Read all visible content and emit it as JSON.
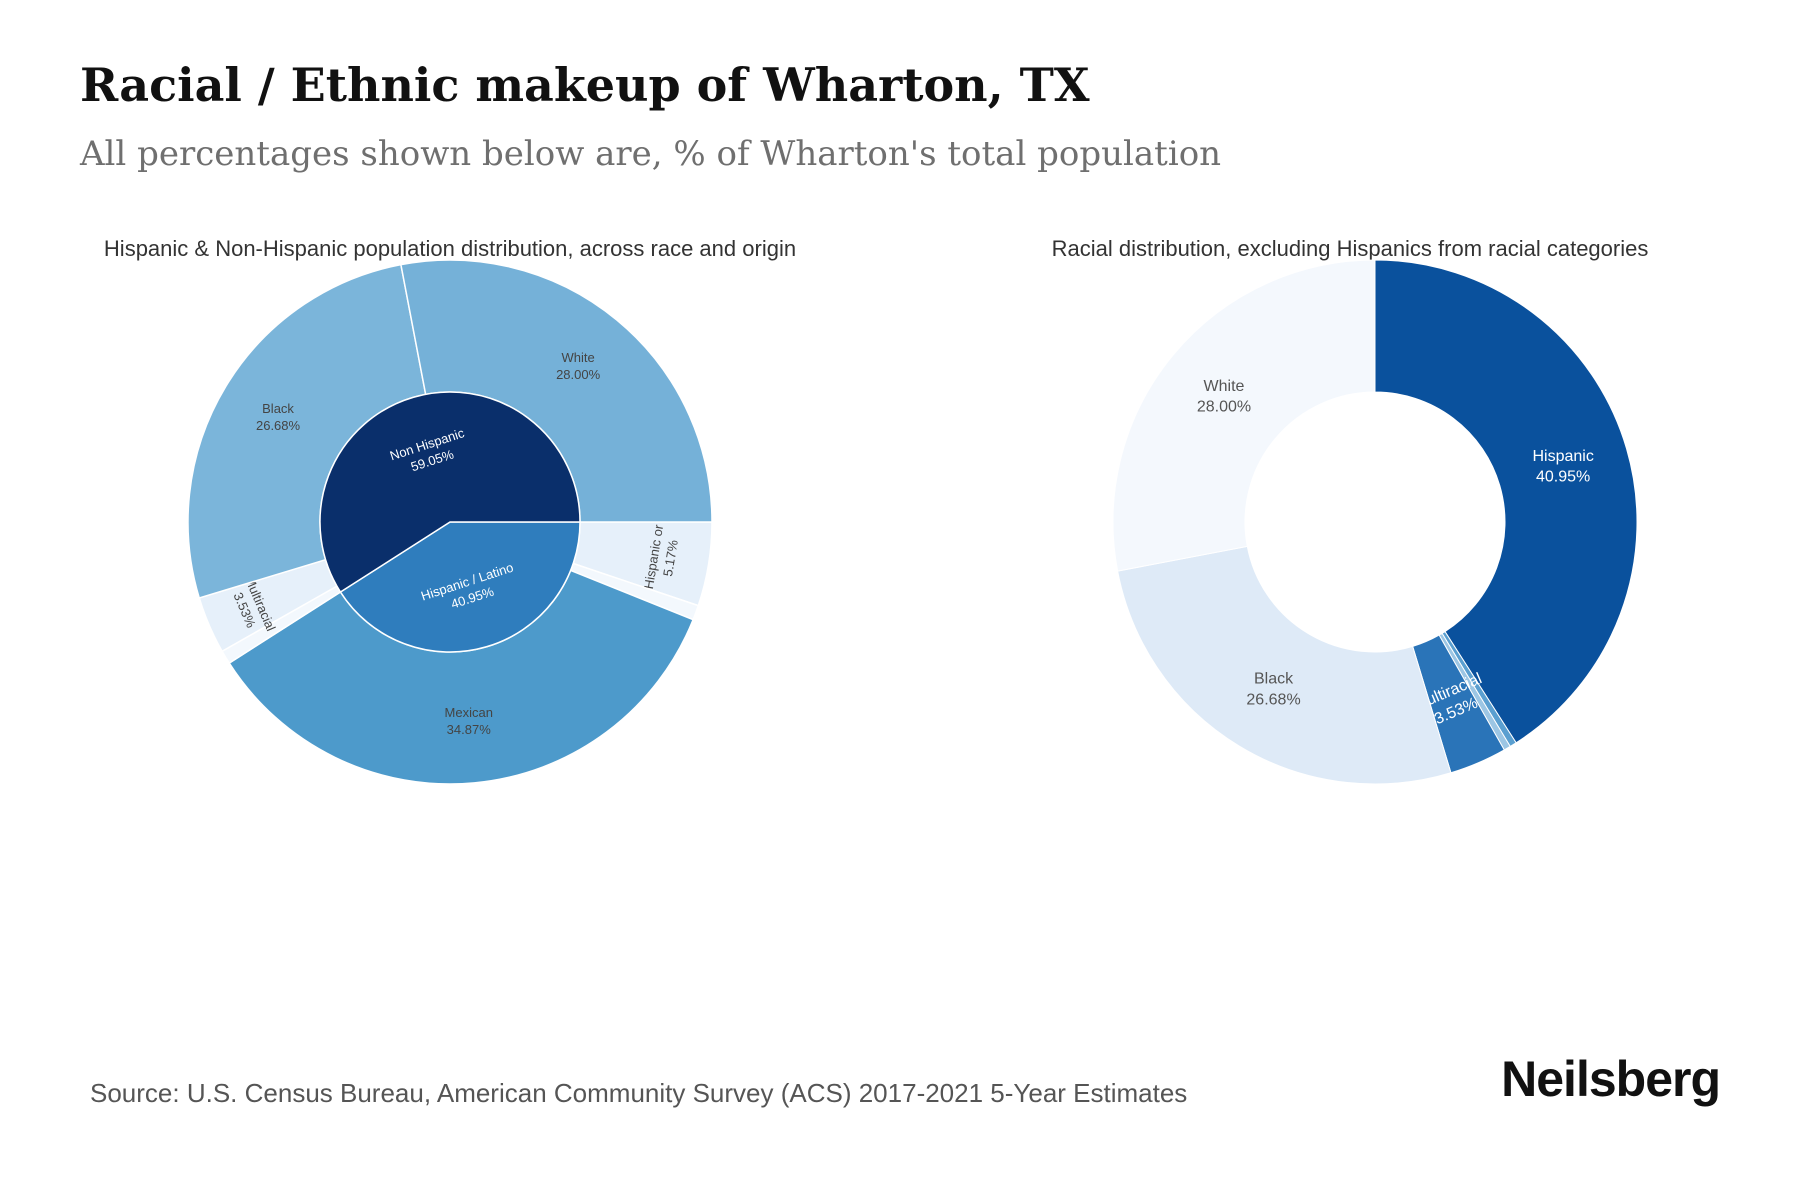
{
  "title": "Racial / Ethnic makeup of Wharton, TX",
  "subtitle": "All percentages shown below are, % of Wharton's total population",
  "source": "Source: U.S. Census Bureau, American Community Survey (ACS) 2017-2021 5-Year Estimates",
  "brand": "Neilsberg",
  "chart_data": [
    {
      "type": "sunburst",
      "title": "Hispanic & Non-Hispanic population distribution, across race and origin",
      "inner": [
        {
          "name": "Non Hispanic",
          "value": 59.05,
          "label_pct": "59.05%",
          "color": "#0a2f6b"
        },
        {
          "name": "Hispanic / Latino",
          "value": 40.95,
          "label_pct": "40.95%",
          "color": "#2f7dbd"
        }
      ],
      "outer": [
        {
          "name": "White",
          "parent": "Non Hispanic",
          "value": 28.0,
          "label_pct": "28.00%",
          "color": "#75b1d8",
          "text_color": "#444444"
        },
        {
          "name": "Black",
          "parent": "Non Hispanic",
          "value": 26.68,
          "label_pct": "26.68%",
          "color": "#7bb5da",
          "text_color": "#444444"
        },
        {
          "name": "Multiracial",
          "parent": "Non Hispanic",
          "value": 3.53,
          "label_pct": "3.53%",
          "color": "#e6f0fa",
          "text_color": "#444444"
        },
        {
          "name": "",
          "parent": "Non Hispanic",
          "value": 0.84,
          "label_pct": "",
          "color": "#f3f8fd",
          "text_color": "#444444"
        },
        {
          "name": "Mexican",
          "parent": "Hispanic / Latino",
          "value": 34.87,
          "label_pct": "34.87%",
          "color": "#4d9acb",
          "text_color": "#444444"
        },
        {
          "name": "Other Hispanic or Latino",
          "parent": "Hispanic / Latino",
          "value": 5.17,
          "label_pct": "5.17%",
          "color": "#e6f0fa",
          "text_color": "#444444"
        },
        {
          "name": "",
          "parent": "Hispanic / Latino",
          "value": 0.91,
          "label_pct": "",
          "color": "#f3f8fd",
          "text_color": "#444444"
        }
      ]
    },
    {
      "type": "donut",
      "title": "Racial distribution, excluding Hispanics from racial categories",
      "slices": [
        {
          "name": "Hispanic",
          "value": 40.95,
          "label_pct": "40.95%",
          "color": "#0a519d",
          "text_color": "#ffffff"
        },
        {
          "name": "",
          "value": 0.42,
          "label_pct": "",
          "color": "#5a9fd0",
          "text_color": "#ffffff"
        },
        {
          "name": "",
          "value": 0.42,
          "label_pct": "",
          "color": "#9cc6e4",
          "text_color": "#ffffff"
        },
        {
          "name": "Multiracial",
          "value": 3.53,
          "label_pct": "3.53%",
          "color": "#2a74b8",
          "text_color": "#ffffff"
        },
        {
          "name": "Black",
          "value": 26.68,
          "label_pct": "26.68%",
          "color": "#deeaf7",
          "text_color": "#555555"
        },
        {
          "name": "White",
          "value": 28.0,
          "label_pct": "28.00%",
          "color": "#f4f8fd",
          "text_color": "#555555"
        }
      ]
    }
  ]
}
